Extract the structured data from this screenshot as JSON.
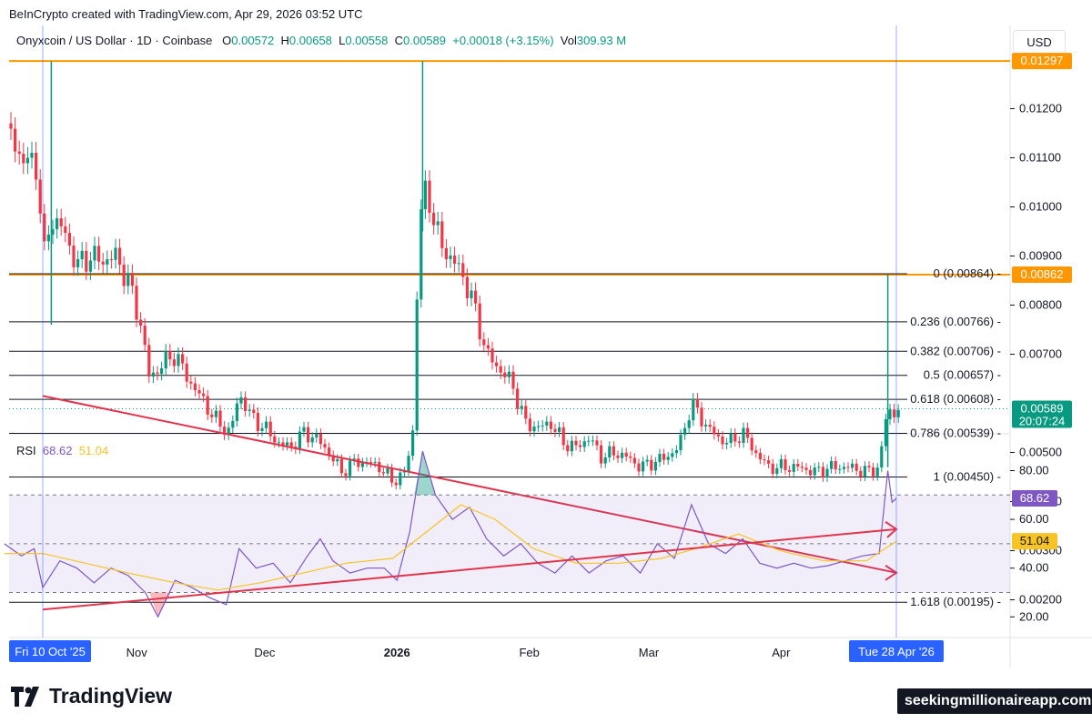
{
  "header": {
    "credit": "BeInCrypto created with TradingView.com, Apr 29, 2026 03:52 UTC",
    "symbol": "Onyxcoin / US Dollar · 1D · Coinbase",
    "o_label": "O",
    "o_value": "0.00572",
    "h_label": "H",
    "h_value": "0.00658",
    "l_label": "L",
    "l_value": "0.00558",
    "c_label": "C",
    "c_value": "0.00589",
    "change": "+0.00018 (+3.15%)",
    "vol_label": "Vol",
    "vol_value": "309.93 M"
  },
  "currency_button": "USD",
  "rsi_legend": {
    "label": "RSI",
    "rsi": "68.62",
    "ma": "51.04"
  },
  "footer": {
    "logo_text": "TradingView",
    "watermark": "seekingmillionaireapp.com"
  },
  "colors": {
    "up": "#089981",
    "down": "#f23645",
    "orange": "#ff9800",
    "rsi": "#7e57c2",
    "rsi_ma": "#f7c325",
    "trend": "#e0344c",
    "cursor": "#2962ff"
  },
  "chart_data": [
    {
      "type": "candlestick",
      "y_axis": {
        "ylim": [
          0.0018,
          0.0139
        ],
        "ticks": [
          "0.01200",
          "0.01100",
          "0.01000",
          "0.00900",
          "0.00800",
          "0.00700",
          "0.00500",
          "0.00400",
          "0.00300",
          "0.00200"
        ]
      },
      "x_axis": {
        "ticks": [
          "Nov",
          "Dec",
          "2026",
          "Feb",
          "Mar",
          "Apr"
        ],
        "start_label": "Fri 10 Oct '25",
        "cursor_label": "Tue 28 Apr '26"
      },
      "price_tags": [
        {
          "label": "0.01297",
          "value": 0.01297,
          "color": "#ff9800"
        },
        {
          "label": "0.00862",
          "value": 0.00862,
          "color": "#ff9800"
        },
        {
          "label": "0.00589",
          "value": 0.00589,
          "color": "#089981",
          "sub": "20:07:24"
        }
      ],
      "horizontal_levels": [
        {
          "value": 0.01297,
          "color": "#ff9800"
        },
        {
          "value": 0.00862,
          "color": "#ff9800"
        }
      ],
      "fib_levels": [
        {
          "label": "0 (0.00864)",
          "value": 0.00864
        },
        {
          "label": "0.236 (0.00766)",
          "value": 0.00766
        },
        {
          "label": "0.382 (0.00706)",
          "value": 0.00706
        },
        {
          "label": "0.5 (0.00657)",
          "value": 0.00657
        },
        {
          "label": "0.618 (0.00608)",
          "value": 0.00608
        },
        {
          "label": "0.786 (0.00539)",
          "value": 0.00539
        },
        {
          "label": "1 (0.00450)",
          "value": 0.0045
        },
        {
          "label": "1.618 (0.00195)",
          "value": 0.00195
        }
      ],
      "trendline": {
        "from": [
          "2025-10-10",
          0.00615
        ],
        "to": [
          "2026-04-28",
          0.00255
        ]
      },
      "close_series": [
        [
          "2025-10-01",
          0.0117
        ],
        [
          "2025-10-05",
          0.011
        ],
        [
          "2025-10-09",
          0.0108
        ],
        [
          "2025-10-10",
          0.0088
        ],
        [
          "2025-10-12",
          0.0098
        ],
        [
          "2025-10-15",
          0.0095
        ],
        [
          "2025-10-18",
          0.0088
        ],
        [
          "2025-10-21",
          0.009
        ],
        [
          "2025-10-24",
          0.0089
        ],
        [
          "2025-10-27",
          0.009
        ],
        [
          "2025-10-30",
          0.0085
        ],
        [
          "2025-11-02",
          0.0076
        ],
        [
          "2025-11-04",
          0.0065
        ],
        [
          "2025-11-07",
          0.0068
        ],
        [
          "2025-11-10",
          0.007
        ],
        [
          "2025-11-13",
          0.0065
        ],
        [
          "2025-11-17",
          0.006
        ],
        [
          "2025-11-20",
          0.0056
        ],
        [
          "2025-11-23",
          0.0054
        ],
        [
          "2025-11-25",
          0.0062
        ],
        [
          "2025-11-28",
          0.0057
        ],
        [
          "2025-12-01",
          0.0055
        ],
        [
          "2025-12-04",
          0.0052
        ],
        [
          "2025-12-07",
          0.0051
        ],
        [
          "2025-12-10",
          0.0054
        ],
        [
          "2025-12-13",
          0.0053
        ],
        [
          "2025-12-16",
          0.005
        ],
        [
          "2025-12-19",
          0.0046
        ],
        [
          "2025-12-22",
          0.0048
        ],
        [
          "2025-12-25",
          0.0048
        ],
        [
          "2025-12-28",
          0.0047
        ],
        [
          "2025-12-31",
          0.0044
        ],
        [
          "2026-01-03",
          0.0046
        ],
        [
          "2026-01-05",
          0.0056
        ],
        [
          "2026-01-06",
          0.0095
        ],
        [
          "2026-01-08",
          0.0105
        ],
        [
          "2026-01-10",
          0.0095
        ],
        [
          "2026-01-13",
          0.009
        ],
        [
          "2026-01-16",
          0.0087
        ],
        [
          "2026-01-19",
          0.008
        ],
        [
          "2026-01-22",
          0.007
        ],
        [
          "2026-01-25",
          0.0067
        ],
        [
          "2026-01-28",
          0.0064
        ],
        [
          "2026-01-31",
          0.0056
        ],
        [
          "2026-02-03",
          0.0055
        ],
        [
          "2026-02-06",
          0.0056
        ],
        [
          "2026-02-09",
          0.0052
        ],
        [
          "2026-02-12",
          0.0051
        ],
        [
          "2026-02-15",
          0.0053
        ],
        [
          "2026-02-18",
          0.0049
        ],
        [
          "2026-02-21",
          0.005
        ],
        [
          "2026-02-24",
          0.0049
        ],
        [
          "2026-02-27",
          0.0047
        ],
        [
          "2026-03-02",
          0.0048
        ],
        [
          "2026-03-05",
          0.0049
        ],
        [
          "2026-03-08",
          0.0051
        ],
        [
          "2026-03-11",
          0.006
        ],
        [
          "2026-03-14",
          0.0056
        ],
        [
          "2026-03-17",
          0.0053
        ],
        [
          "2026-03-20",
          0.0052
        ],
        [
          "2026-03-23",
          0.0054
        ],
        [
          "2026-03-26",
          0.005
        ],
        [
          "2026-03-29",
          0.0047
        ],
        [
          "2026-04-01",
          0.0047
        ],
        [
          "2026-04-05",
          0.0047
        ],
        [
          "2026-04-09",
          0.0046
        ],
        [
          "2026-04-13",
          0.0047
        ],
        [
          "2026-04-17",
          0.0047
        ],
        [
          "2026-04-21",
          0.0046
        ],
        [
          "2026-04-24",
          0.0047
        ],
        [
          "2026-04-26",
          0.006
        ],
        [
          "2026-04-27",
          0.00571
        ],
        [
          "2026-04-28",
          0.00589
        ]
      ]
    },
    {
      "type": "line",
      "name": "RSI",
      "ylim": [
        12,
        98
      ],
      "ticks": [
        "80.00",
        "60.00",
        "40.00",
        "20.00"
      ],
      "band": [
        30,
        70
      ],
      "midline": 50,
      "price_tags": [
        {
          "label": "68.62",
          "value": 68.62,
          "color": "#7e57c2"
        },
        {
          "label": "51.04",
          "value": 51.04,
          "color": "#f7c325"
        }
      ],
      "trendline": {
        "from": [
          "2025-10-10",
          23
        ],
        "to": [
          "2026-04-28",
          56
        ]
      },
      "series": [
        {
          "values": [
            [
              "2025-10-01",
              50
            ],
            [
              "2025-10-05",
              45
            ],
            [
              "2025-10-08",
              48
            ],
            [
              "2025-10-10",
              32
            ],
            [
              "2025-10-14",
              43
            ],
            [
              "2025-10-18",
              40
            ],
            [
              "2025-10-22",
              34
            ],
            [
              "2025-10-26",
              40
            ],
            [
              "2025-10-30",
              37
            ],
            [
              "2025-11-03",
              30
            ],
            [
              "2025-11-06",
              20
            ],
            [
              "2025-11-10",
              35
            ],
            [
              "2025-11-14",
              32
            ],
            [
              "2025-11-18",
              28
            ],
            [
              "2025-11-22",
              25
            ],
            [
              "2025-11-25",
              48
            ],
            [
              "2025-11-29",
              40
            ],
            [
              "2025-12-03",
              42
            ],
            [
              "2025-12-07",
              34
            ],
            [
              "2025-12-11",
              45
            ],
            [
              "2025-12-14",
              52
            ],
            [
              "2025-12-17",
              43
            ],
            [
              "2025-12-21",
              38
            ],
            [
              "2025-12-25",
              40
            ],
            [
              "2025-12-29",
              40
            ],
            [
              "2026-01-01",
              35
            ],
            [
              "2026-01-04",
              55
            ],
            [
              "2026-01-07",
              88
            ],
            [
              "2026-01-10",
              70
            ],
            [
              "2026-01-14",
              60
            ],
            [
              "2026-01-18",
              65
            ],
            [
              "2026-01-22",
              52
            ],
            [
              "2026-01-26",
              45
            ],
            [
              "2026-01-30",
              50
            ],
            [
              "2026-02-03",
              42
            ],
            [
              "2026-02-07",
              38
            ],
            [
              "2026-02-11",
              45
            ],
            [
              "2026-02-15",
              38
            ],
            [
              "2026-02-19",
              43
            ],
            [
              "2026-02-23",
              45
            ],
            [
              "2026-02-27",
              38
            ],
            [
              "2026-03-03",
              50
            ],
            [
              "2026-03-07",
              44
            ],
            [
              "2026-03-11",
              66
            ],
            [
              "2026-03-15",
              50
            ],
            [
              "2026-03-19",
              46
            ],
            [
              "2026-03-23",
              52
            ],
            [
              "2026-03-27",
              42
            ],
            [
              "2026-03-31",
              40
            ],
            [
              "2026-04-04",
              42
            ],
            [
              "2026-04-08",
              40
            ],
            [
              "2026-04-12",
              41
            ],
            [
              "2026-04-16",
              43
            ],
            [
              "2026-04-20",
              45
            ],
            [
              "2026-04-24",
              46
            ],
            [
              "2026-04-26",
              80
            ],
            [
              "2026-04-27",
              67
            ],
            [
              "2026-04-28",
              68.62
            ]
          ]
        },
        {
          "values": [
            [
              "2025-10-01",
              46
            ],
            [
              "2025-10-10",
              46
            ],
            [
              "2025-10-20",
              42
            ],
            [
              "2025-10-30",
              38
            ],
            [
              "2025-11-10",
              34
            ],
            [
              "2025-11-20",
              31
            ],
            [
              "2025-11-30",
              34
            ],
            [
              "2025-12-10",
              38
            ],
            [
              "2025-12-20",
              42
            ],
            [
              "2025-12-31",
              44
            ],
            [
              "2026-01-08",
              55
            ],
            [
              "2026-01-16",
              66
            ],
            [
              "2026-01-24",
              60
            ],
            [
              "2026-02-02",
              48
            ],
            [
              "2026-02-12",
              42
            ],
            [
              "2026-02-22",
              42
            ],
            [
              "2026-03-04",
              44
            ],
            [
              "2026-03-12",
              48
            ],
            [
              "2026-03-22",
              54
            ],
            [
              "2026-04-01",
              47
            ],
            [
              "2026-04-11",
              43
            ],
            [
              "2026-04-21",
              43
            ],
            [
              "2026-04-28",
              51.04
            ]
          ]
        }
      ]
    }
  ]
}
